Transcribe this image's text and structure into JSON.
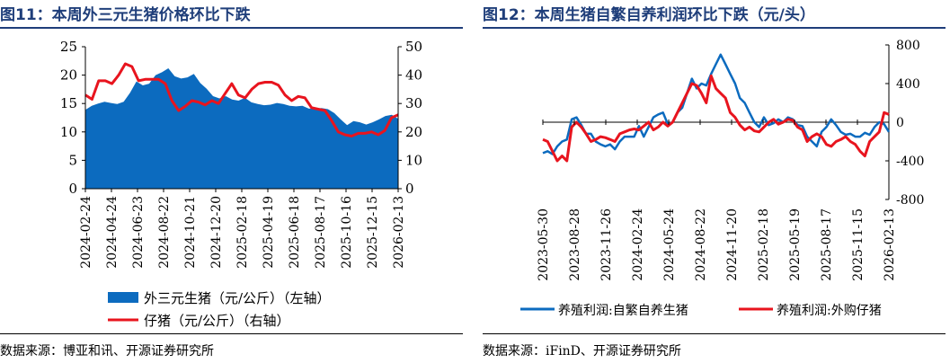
{
  "charts": [
    {
      "title": "图11：本周外三元生猪价格环比下跌",
      "source": "数据来源：博亚和讯、开源证券研究所"
    },
    {
      "title": "图12：本周生猪自繁自养利润环比下跌（元/头）",
      "source": "数据来源：iFinD、开源证券研究所"
    }
  ],
  "chart_data": [
    {
      "type": "area",
      "title": "图11：本周外三元生猪价格环比下跌",
      "x_ticks": [
        "2024-02-24",
        "2024-04-24",
        "2024-06-23",
        "2024-08-22",
        "2024-10-21",
        "2024-12-20",
        "2025-02-18",
        "2025-04-19",
        "2025-06-18",
        "2025-08-17",
        "2025-10-16",
        "2025-12-15",
        "2026-02-13"
      ],
      "y_left": {
        "ticks": [
          "0",
          "5",
          "10",
          "15",
          "20",
          "25"
        ],
        "lim": [
          0,
          25
        ]
      },
      "y_right": {
        "ticks": [
          "0",
          "10",
          "20",
          "30",
          "40",
          "50"
        ],
        "lim": [
          0,
          50
        ]
      },
      "legend_position": "bottom",
      "series": [
        {
          "name": "外三元生猪（元/公斤）（左轴）",
          "kind": "area",
          "axis": "left",
          "color": "#0c6bbf",
          "values": [
            13.9,
            14.6,
            15.0,
            15.3,
            15.1,
            14.9,
            15.3,
            16.9,
            18.9,
            18.2,
            18.5,
            20.0,
            20.5,
            21.2,
            19.8,
            19.4,
            19.6,
            20.2,
            18.6,
            17.6,
            16.3,
            15.9,
            16.3,
            15.7,
            15.5,
            16.0,
            15.2,
            14.9,
            14.7,
            14.8,
            15.1,
            14.9,
            14.6,
            14.5,
            14.6,
            14.1,
            14.1,
            14.2,
            14.0,
            13.3,
            12.2,
            11.2,
            11.9,
            11.7,
            11.3,
            11.7,
            12.2,
            12.8,
            13.0,
            12.3
          ]
        },
        {
          "name": "仔猪（元/公斤）（右轴）",
          "kind": "line",
          "axis": "right",
          "color": "#e8141e",
          "values": [
            33,
            31.5,
            38,
            38,
            37,
            40,
            44,
            43,
            38,
            38.5,
            38.5,
            38.5,
            37,
            31,
            27.5,
            29,
            31,
            30.5,
            29.5,
            31,
            30,
            33.5,
            37,
            33,
            32,
            35,
            37,
            37.5,
            37.5,
            36.5,
            33,
            31,
            32.5,
            32,
            28.5,
            28,
            27.5,
            24,
            20,
            19,
            18.5,
            19.5,
            19.5,
            20,
            19,
            20.5,
            25,
            26
          ]
        }
      ]
    },
    {
      "type": "line",
      "title": "图12：本周生猪自繁自养利润环比下跌（元/头）",
      "x_ticks": [
        "2023-05-30",
        "2023-08-28",
        "2023-11-26",
        "2024-02-24",
        "2024-05-24",
        "2024-08-22",
        "2024-11-20",
        "2025-02-18",
        "2025-05-19",
        "2025-08-17",
        "2025-11-15",
        "2026-02-13"
      ],
      "y": {
        "ticks": [
          "800",
          "400",
          "0",
          "-400",
          "-800"
        ],
        "lim": [
          -800,
          800
        ]
      },
      "legend_position": "bottom",
      "series": [
        {
          "name": "养殖利润:自繁自养生猪",
          "color": "#0c6bbf",
          "values": [
            -320,
            -300,
            -330,
            -250,
            -200,
            -180,
            30,
            50,
            -30,
            -120,
            -120,
            -200,
            -230,
            -250,
            -230,
            -280,
            -200,
            -150,
            -150,
            -150,
            -40,
            -150,
            -50,
            50,
            80,
            100,
            -20,
            0,
            100,
            150,
            300,
            450,
            350,
            400,
            380,
            500,
            600,
            700,
            600,
            500,
            400,
            250,
            200,
            100,
            0,
            -50,
            50,
            -30,
            -10,
            30,
            0,
            50,
            30,
            -30,
            -40,
            -150,
            -200,
            -250,
            -100,
            -50,
            30,
            -30,
            -100,
            -130,
            -120,
            -150,
            -150,
            -110,
            -130,
            -50,
            0,
            -20,
            -100
          ]
        },
        {
          "name": "养殖利润:外购仔猪",
          "color": "#e8141e",
          "values": [
            -180,
            -200,
            -300,
            -400,
            -350,
            -400,
            -50,
            0,
            -50,
            -120,
            -200,
            -180,
            -150,
            -160,
            -180,
            -200,
            -120,
            -100,
            -80,
            -70,
            -80,
            -40,
            0,
            -80,
            -50,
            0,
            -40,
            0,
            100,
            200,
            300,
            400,
            380,
            300,
            200,
            480,
            350,
            300,
            250,
            100,
            50,
            -30,
            -80,
            -50,
            -90,
            -100,
            -50,
            0,
            30,
            -20,
            0,
            30,
            20,
            -50,
            -80,
            -200,
            -150,
            -120,
            -150,
            -230,
            -250,
            -200,
            -180,
            -150,
            -200,
            -230,
            -300,
            -350,
            -200,
            -150,
            -100,
            100,
            80
          ]
        }
      ]
    }
  ],
  "legends": [
    [
      "外三元生猪（元/公斤）（左轴）",
      "仔猪（元/公斤）（右轴）"
    ],
    [
      "养殖利润:自繁自养生猪",
      "养殖利润:外购仔猪"
    ]
  ]
}
